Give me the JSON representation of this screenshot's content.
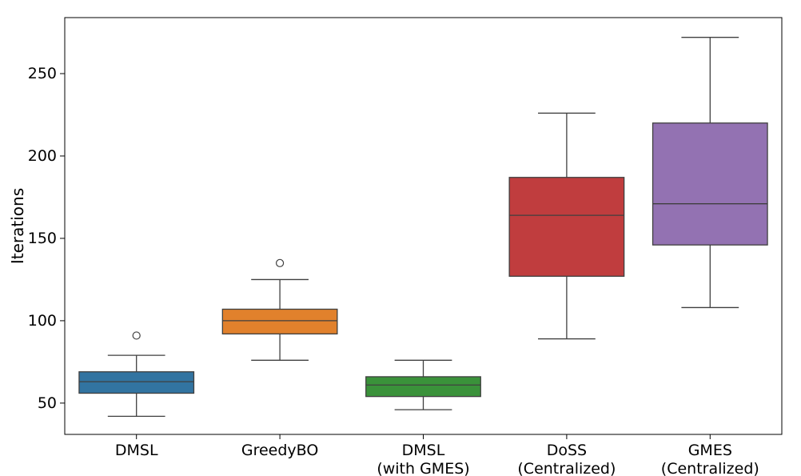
{
  "chart_data": {
    "type": "box",
    "title": "",
    "xlabel": "",
    "ylabel": "Iterations",
    "ylim": [
      31,
      284
    ],
    "yticks": [
      50,
      100,
      150,
      200,
      250
    ],
    "grid": false,
    "categories": [
      {
        "lines": [
          "DMSL"
        ]
      },
      {
        "lines": [
          "GreedyBO"
        ]
      },
      {
        "lines": [
          "DMSL",
          "(with GMES)"
        ]
      },
      {
        "lines": [
          "DoSS",
          "(Centralized)"
        ]
      },
      {
        "lines": [
          "GMES",
          "(Centralized)"
        ]
      }
    ],
    "series": [
      {
        "whisker_low": 42,
        "q1": 56,
        "median": 63,
        "q3": 69,
        "whisker_high": 79,
        "outliers": [
          91
        ],
        "color": "#3274a1"
      },
      {
        "whisker_low": 76,
        "q1": 92,
        "median": 100,
        "q3": 107,
        "whisker_high": 125,
        "outliers": [
          135
        ],
        "color": "#e1812c"
      },
      {
        "whisker_low": 46,
        "q1": 54,
        "median": 61,
        "q3": 66,
        "whisker_high": 76,
        "outliers": [],
        "color": "#3a923a"
      },
      {
        "whisker_low": 89,
        "q1": 127,
        "median": 164,
        "q3": 187,
        "whisker_high": 226,
        "outliers": [],
        "color": "#c03d3e"
      },
      {
        "whisker_low": 108,
        "q1": 146,
        "median": 171,
        "q3": 220,
        "whisker_high": 272,
        "outliers": [],
        "color": "#9372b2"
      }
    ]
  }
}
